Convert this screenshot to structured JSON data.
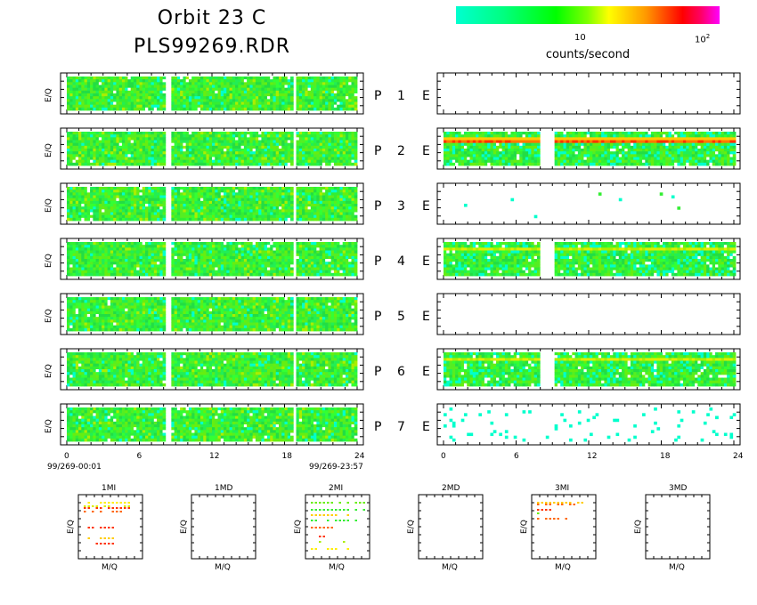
{
  "header": {
    "title_line1": "Orbit 23 C",
    "title_line2": "PLS99269.RDR"
  },
  "colorbar": {
    "label": "counts/second",
    "tick_10": "10",
    "tick_100_base": "10",
    "tick_100_exp": "2",
    "colors": [
      "#00ffd0",
      "#00ff00",
      "#ffff00",
      "#ff0000",
      "#ff00ff"
    ]
  },
  "chart_data": [
    {
      "type": "heatmap",
      "panel": "P",
      "rows": [
        "1",
        "2",
        "3",
        "4",
        "5",
        "6",
        "7"
      ],
      "ylabel": "E/Q",
      "x_ticks": [
        "0",
        "6",
        "12",
        "18",
        "24"
      ],
      "xlim": [
        0,
        24
      ],
      "x_start_label": "99/269-00:01",
      "x_end_label": "99/269-23:57",
      "data_gaps": [
        [
          8.0,
          8.6
        ],
        [
          18.7,
          18.8
        ]
      ],
      "dominant_color": "#33ee33"
    },
    {
      "type": "heatmap",
      "panel": "E",
      "rows": [
        "1",
        "2",
        "3",
        "4",
        "5",
        "6",
        "7"
      ],
      "x_ticks": [
        "0",
        "6",
        "12",
        "18",
        "24"
      ],
      "xlim": [
        0,
        24
      ],
      "data_gaps": [
        [
          7.9,
          8.9
        ]
      ],
      "row_descriptions": {
        "1": "empty",
        "2": "dense band with red/orange streak",
        "3": "sparse isolated pixels",
        "4": "dense green/yellow with streak",
        "5": "empty",
        "6": "dense with yellow streak",
        "7": "sparse cyan pixels"
      }
    },
    {
      "type": "scatter",
      "panels": [
        "1MI",
        "1MD",
        "2MI",
        "2MD",
        "3MI",
        "3MD"
      ],
      "xlabel": "M/Q",
      "ylabel": "E/Q"
    }
  ],
  "labels": {
    "P": "P",
    "E": "E",
    "ylabel": "E/Q",
    "xlabel": "M/Q"
  }
}
